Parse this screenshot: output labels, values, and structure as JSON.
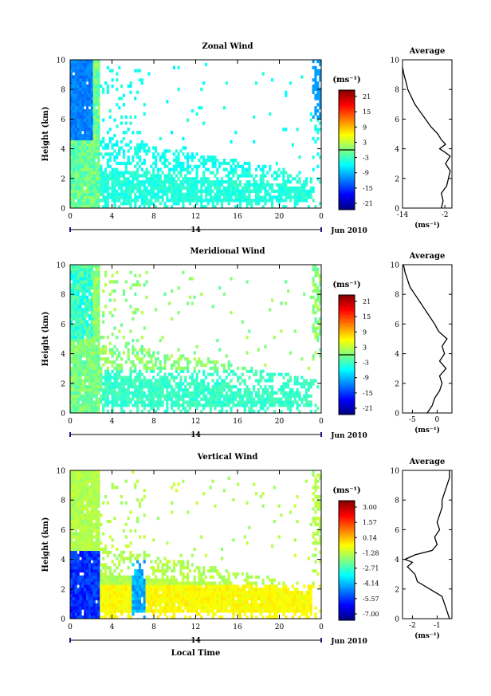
{
  "figure": {
    "xlabel": "Local Time",
    "date_label": "14",
    "month_label": "Jun 2010",
    "units": "(ms⁻¹)"
  },
  "chart_data": [
    {
      "type": "heatmap",
      "title": "Zonal Wind",
      "ylabel": "Height (km)",
      "xlabel": "",
      "ylim": [
        0,
        10
      ],
      "x_ticks": [
        "0",
        "4",
        "8",
        "12",
        "16",
        "20",
        "0"
      ],
      "y_ticks": [
        "0",
        "2",
        "4",
        "6",
        "8",
        "10"
      ],
      "colorbar": {
        "label": "(ms⁻¹)",
        "ticks": [
          "21",
          "15",
          "9",
          "3",
          "-3",
          "-9",
          "-15",
          "-21"
        ],
        "range": [
          -24,
          24
        ],
        "zero_contour": true
      },
      "profile": {
        "title": "Average",
        "x_ticks": [
          "-14",
          "-2"
        ],
        "xlim": [
          -14,
          0
        ],
        "xlabel": "(ms⁻¹)",
        "heights": [
          0,
          0.5,
          1,
          1.5,
          2,
          2.5,
          3,
          3.5,
          3.8,
          4,
          4.3,
          4.6,
          5,
          5.5,
          6,
          6.5,
          7,
          7.5,
          8,
          8.5,
          9,
          9.5
        ],
        "values": [
          -3,
          -2.5,
          -3,
          -1.5,
          -1,
          -0.5,
          -1.8,
          -0.5,
          -2.2,
          -3.5,
          -1.8,
          -3,
          -4,
          -6,
          -7.5,
          -9,
          -10.5,
          -11.5,
          -12.5,
          -13,
          -13.6,
          -14
        ]
      }
    },
    {
      "type": "heatmap",
      "title": "Meridional Wind",
      "ylabel": "Height (km)",
      "xlabel": "",
      "ylim": [
        0,
        10
      ],
      "x_ticks": [
        "0",
        "4",
        "8",
        "12",
        "16",
        "20",
        "0"
      ],
      "y_ticks": [
        "0",
        "2",
        "4",
        "6",
        "8",
        "10"
      ],
      "colorbar": {
        "label": "(ms⁻¹)",
        "ticks": [
          "21",
          "15",
          "9",
          "3",
          "-3",
          "-9",
          "-15",
          "-21"
        ],
        "range": [
          -24,
          24
        ],
        "zero_contour": true
      },
      "profile": {
        "title": "Average",
        "x_ticks": [
          "-5",
          "0"
        ],
        "xlim": [
          -7,
          3
        ],
        "xlabel": "(ms⁻¹)",
        "heights": [
          0,
          0.5,
          1,
          1.5,
          2,
          2.5,
          3,
          3.5,
          4,
          4.5,
          5,
          5.5,
          6,
          6.5,
          7,
          7.5,
          8,
          8.5,
          9,
          9.5,
          10
        ],
        "values": [
          -2,
          -1,
          -0.5,
          0.5,
          1,
          0.5,
          1.8,
          0.5,
          1.5,
          1,
          2,
          0.3,
          -0.5,
          -1.5,
          -2.5,
          -3.5,
          -4.5,
          -5.5,
          -6,
          -6.5,
          -6.8
        ]
      }
    },
    {
      "type": "heatmap",
      "title": "Vertical Wind",
      "ylabel": "Height (km)",
      "xlabel": "Local Time",
      "ylim": [
        0,
        10
      ],
      "x_ticks": [
        "0",
        "4",
        "8",
        "12",
        "16",
        "20",
        "0"
      ],
      "y_ticks": [
        "0",
        "2",
        "4",
        "6",
        "8",
        "10"
      ],
      "colorbar": {
        "label": "(ms⁻¹)",
        "ticks": [
          "3.00",
          "1.57",
          "0.14",
          "-1.28",
          "-2.71",
          "-4.14",
          "-5.57",
          "-7.00"
        ],
        "range": [
          -8,
          3.7
        ],
        "zero_contour": false
      },
      "profile": {
        "title": "Average",
        "x_ticks": [
          "-2",
          "-1"
        ],
        "xlim": [
          -2.4,
          -0.4
        ],
        "xlabel": "(ms⁻¹)",
        "heights": [
          0,
          0.5,
          1,
          1.5,
          2,
          2.5,
          3,
          3.5,
          3.8,
          4,
          4.3,
          4.6,
          5,
          5.5,
          6,
          6.5,
          7,
          7.5,
          8,
          8.5,
          9,
          9.5,
          10
        ],
        "values": [
          -0.5,
          -0.6,
          -0.7,
          -0.8,
          -1.3,
          -1.8,
          -1.9,
          -2.2,
          -2.0,
          -2.3,
          -1.9,
          -1.2,
          -1.0,
          -1.1,
          -0.9,
          -1.0,
          -0.9,
          -0.8,
          -0.8,
          -0.7,
          -0.6,
          -0.5,
          -0.5
        ]
      }
    }
  ]
}
